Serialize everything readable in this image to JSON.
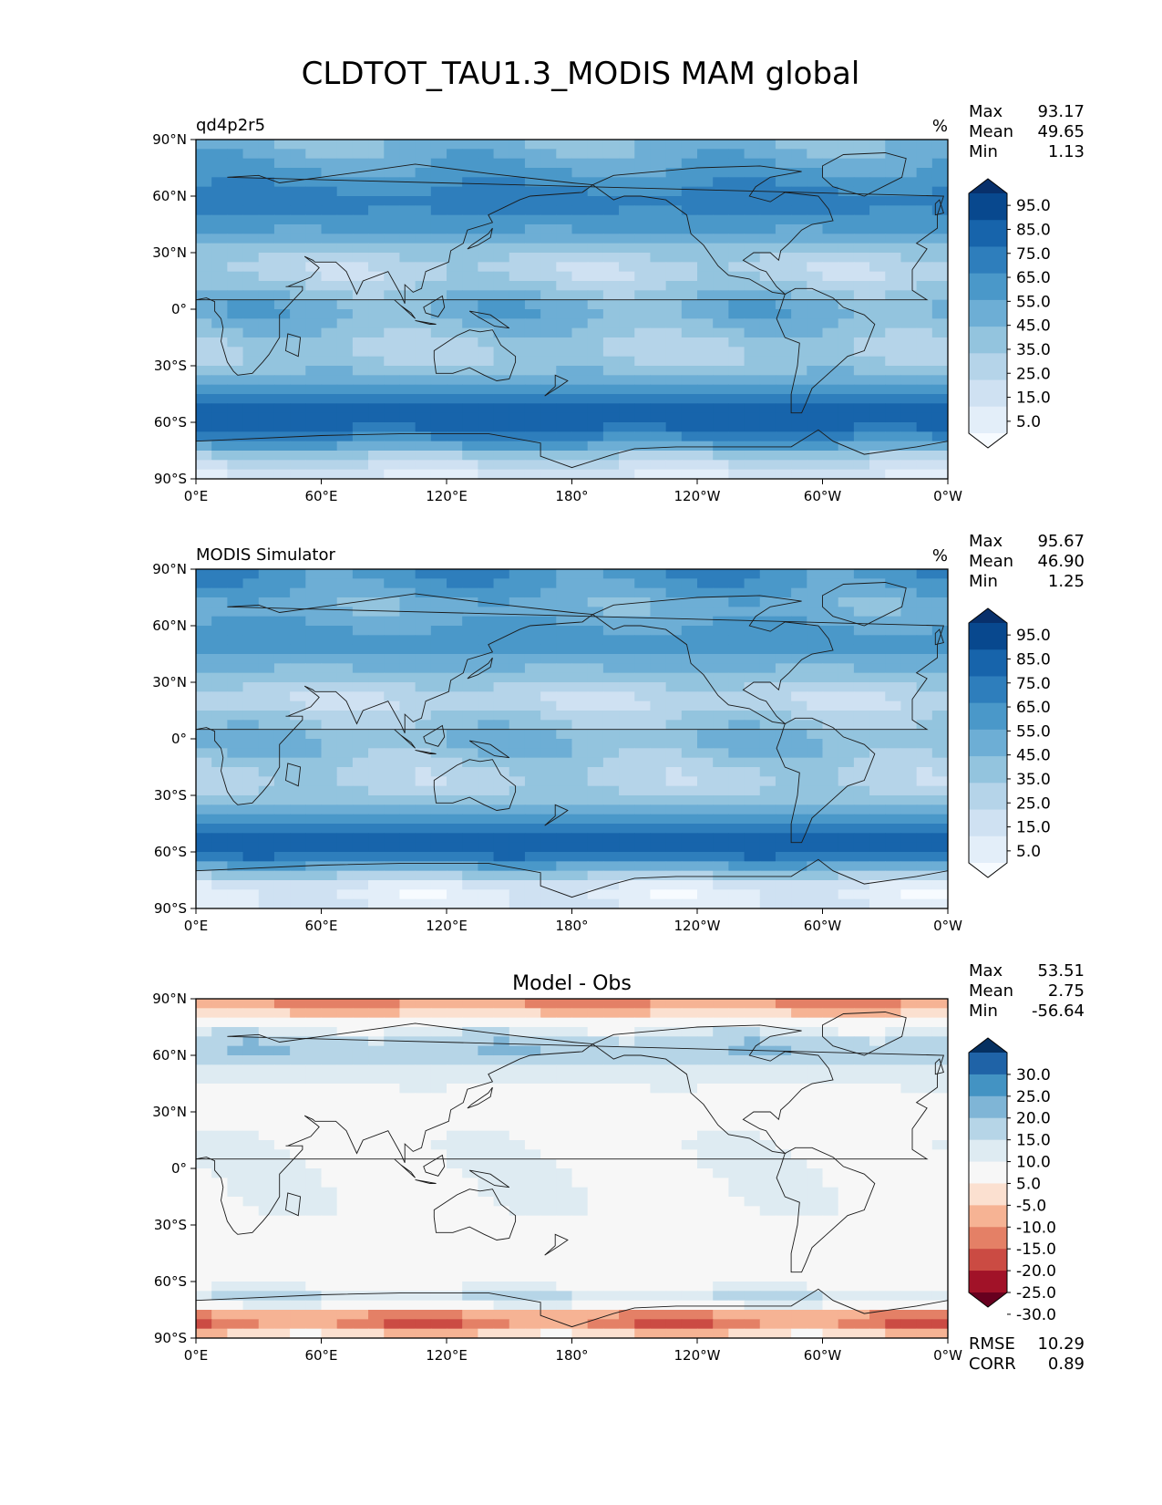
{
  "figure": {
    "title": "CLDTOT_TAU1.3_MODIS MAM global"
  },
  "colors": {
    "blues": [
      "#f7fbff",
      "#e3eef9",
      "#cfe1f2",
      "#b5d4e9",
      "#93c4de",
      "#6daed5",
      "#4a98c9",
      "#2e7ebc",
      "#1764ab",
      "#08488e",
      "#08306b"
    ],
    "rdbu": [
      "#67001f",
      "#a11228",
      "#cb4b43",
      "#e48066",
      "#f6b394",
      "#fbe0d0",
      "#f7f7f7",
      "#deebf2",
      "#b6d5e7",
      "#7fb5d6",
      "#4393c3",
      "#1f63a7",
      "#053061"
    ]
  },
  "axes": {
    "x_ticks": [
      "0°E",
      "60°E",
      "120°E",
      "180°",
      "120°W",
      "60°W",
      "0°W"
    ],
    "y_ticks": [
      "90°N",
      "60°N",
      "30°N",
      "0°",
      "30°S",
      "60°S",
      "90°S"
    ]
  },
  "panels": [
    {
      "left_title": "qd4p2r5",
      "center_title": "",
      "units": "%",
      "stats": [
        {
          "label": "Max",
          "value": "93.17"
        },
        {
          "label": "Mean",
          "value": "49.65"
        },
        {
          "label": "Min",
          "value": "1.13"
        }
      ],
      "extra_stats": [],
      "colorbar": {
        "levels": [
          "95.0",
          "85.0",
          "75.0",
          "65.0",
          "55.0",
          "45.0",
          "35.0",
          "25.0",
          "15.0",
          "5.0"
        ]
      }
    },
    {
      "left_title": "MODIS Simulator",
      "center_title": "",
      "units": "%",
      "stats": [
        {
          "label": "Max",
          "value": "95.67"
        },
        {
          "label": "Mean",
          "value": "46.90"
        },
        {
          "label": "Min",
          "value": "1.25"
        }
      ],
      "extra_stats": [],
      "colorbar": {
        "levels": [
          "95.0",
          "85.0",
          "75.0",
          "65.0",
          "55.0",
          "45.0",
          "35.0",
          "25.0",
          "15.0",
          "5.0"
        ]
      }
    },
    {
      "left_title": "",
      "center_title": "Model - Obs",
      "units": "",
      "stats": [
        {
          "label": "Max",
          "value": "53.51"
        },
        {
          "label": "Mean",
          "value": "2.75"
        },
        {
          "label": "Min",
          "value": "-56.64"
        }
      ],
      "extra_stats": [
        {
          "label": "RMSE",
          "value": "10.29"
        },
        {
          "label": "CORR",
          "value": "0.89"
        }
      ],
      "colorbar": {
        "levels": [
          "30.0",
          "25.0",
          "20.0",
          "15.0",
          "10.0",
          "5.0",
          "-5.0",
          "-10.0",
          "-15.0",
          "-20.0",
          "-25.0",
          "-30.0"
        ]
      }
    }
  ],
  "chart_data": [
    {
      "type": "heatmap",
      "title": "qd4p2r5",
      "variable": "CLDTOT_TAU1.3_MODIS",
      "season": "MAM",
      "region": "global",
      "units": "%",
      "xlim": [
        0,
        360
      ],
      "ylim": [
        -90,
        90
      ],
      "x_tick_values": [
        0,
        60,
        120,
        180,
        240,
        300,
        360
      ],
      "y_tick_values": [
        90,
        60,
        30,
        0,
        -30,
        -60,
        -90
      ],
      "max": 93.17,
      "mean": 49.65,
      "min": 1.13,
      "levels": [
        0,
        10,
        20,
        30,
        40,
        50,
        60,
        70,
        80,
        90,
        100
      ],
      "zonal_profile": {
        "lat": [
          -90,
          -80,
          -70,
          -60,
          -50,
          -40,
          -30,
          -20,
          -10,
          0,
          10,
          20,
          30,
          40,
          50,
          60,
          70,
          80,
          90
        ],
        "value": [
          18,
          35,
          68,
          88,
          82,
          62,
          42,
          38,
          48,
          56,
          44,
          32,
          42,
          58,
          70,
          74,
          64,
          55,
          50
        ]
      },
      "colorbar_labels": [
        95,
        85,
        75,
        65,
        55,
        45,
        35,
        25,
        15,
        5
      ]
    },
    {
      "type": "heatmap",
      "title": "MODIS Simulator",
      "variable": "CLDTOT_TAU1.3_MODIS",
      "season": "MAM",
      "region": "global",
      "units": "%",
      "xlim": [
        0,
        360
      ],
      "ylim": [
        -90,
        90
      ],
      "x_tick_values": [
        0,
        60,
        120,
        180,
        240,
        300,
        360
      ],
      "y_tick_values": [
        90,
        60,
        30,
        0,
        -30,
        -60,
        -90
      ],
      "max": 95.67,
      "mean": 46.9,
      "min": 1.25,
      "levels": [
        0,
        10,
        20,
        30,
        40,
        50,
        60,
        70,
        80,
        90,
        100
      ],
      "zonal_profile": {
        "lat": [
          -90,
          -80,
          -70,
          -60,
          -50,
          -40,
          -30,
          -20,
          -10,
          0,
          10,
          20,
          30,
          40,
          50,
          60,
          70,
          80,
          90
        ],
        "value": [
          20,
          15,
          48,
          86,
          80,
          60,
          40,
          34,
          44,
          52,
          40,
          30,
          40,
          55,
          66,
          60,
          52,
          62,
          68
        ]
      },
      "colorbar_labels": [
        95,
        85,
        75,
        65,
        55,
        45,
        35,
        25,
        15,
        5
      ]
    },
    {
      "type": "heatmap",
      "title": "Model - Obs",
      "variable": "CLDTOT_TAU1.3_MODIS",
      "season": "MAM",
      "region": "global",
      "units": "%",
      "xlim": [
        0,
        360
      ],
      "ylim": [
        -90,
        90
      ],
      "x_tick_values": [
        0,
        60,
        120,
        180,
        240,
        300,
        360
      ],
      "y_tick_values": [
        90,
        60,
        30,
        0,
        -30,
        -60,
        -90
      ],
      "max": 53.51,
      "mean": 2.75,
      "min": -56.64,
      "rmse": 10.29,
      "corr": 0.89,
      "levels": [
        -35,
        -30,
        -25,
        -20,
        -15,
        -10,
        -5,
        5,
        10,
        15,
        20,
        25,
        30,
        35
      ],
      "zonal_profile": {
        "lat": [
          -90,
          -80,
          -70,
          -60,
          -50,
          -40,
          -30,
          -20,
          -10,
          0,
          10,
          20,
          30,
          40,
          50,
          60,
          70,
          80,
          90
        ],
        "value": [
          -4,
          -22,
          12,
          2,
          2,
          2,
          2,
          4,
          4,
          4,
          4,
          2,
          2,
          4,
          6,
          14,
          12,
          -6,
          -18
        ]
      },
      "colorbar_labels": [
        30,
        25,
        20,
        15,
        10,
        5,
        -5,
        -10,
        -15,
        -20,
        -25,
        -30
      ]
    }
  ]
}
